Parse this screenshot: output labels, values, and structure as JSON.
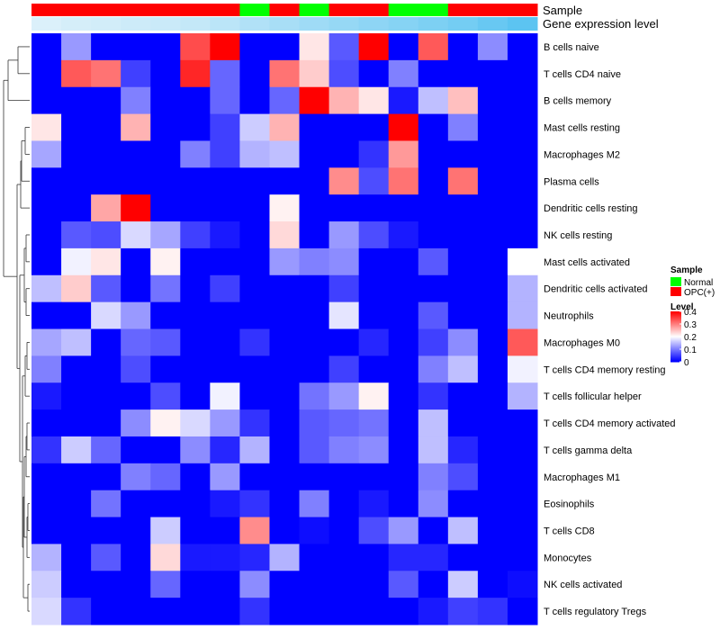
{
  "chart_data": {
    "type": "heatmap",
    "title": "",
    "annotation_labels": [
      "Sample",
      "Gene expression level"
    ],
    "rows": [
      "B cells naive",
      "T cells CD4 naive",
      "B cells memory",
      "Mast cells resting",
      "Macrophages M2",
      "Plasma cells",
      "Dendritic cells resting",
      "NK cells resting",
      "Mast cells activated",
      "Dendritic cells activated",
      "Neutrophils",
      "Macrophages M0",
      "T cells CD4 memory resting",
      "T cells follicular helper",
      "T cells CD4 memory activated",
      "T cells gamma delta",
      "Macrophages M1",
      "Eosinophils",
      "T cells CD8",
      "Monocytes",
      "NK cells activated",
      "T cells regulatory  Tregs"
    ],
    "sample_groups": [
      "OPC(+)",
      "OPC(+)",
      "OPC(+)",
      "OPC(+)",
      "OPC(+)",
      "OPC(+)",
      "OPC(+)",
      "Normal",
      "OPC(+)",
      "Normal",
      "OPC(+)",
      "OPC(+)",
      "Normal",
      "Normal",
      "OPC(+)",
      "OPC(+)",
      "OPC(+)"
    ],
    "expression_level": [
      0.04,
      0.08,
      0.1,
      0.13,
      0.15,
      0.19,
      0.25,
      0.32,
      0.38,
      0.44,
      0.5,
      0.55,
      0.6,
      0.66,
      0.72,
      0.8,
      0.88
    ],
    "values": [
      [
        0,
        0.12,
        0,
        0,
        0,
        0.34,
        0.4,
        0,
        0,
        0.22,
        0.07,
        0.4,
        0,
        0.33,
        0,
        0.11,
        0
      ],
      [
        0,
        0.33,
        0.31,
        0.05,
        0,
        0.37,
        0.08,
        0,
        0.31,
        0.24,
        0.06,
        0,
        0.1,
        0,
        0,
        0,
        0
      ],
      [
        0,
        0,
        0,
        0.1,
        0,
        0,
        0.08,
        0,
        0.08,
        0.4,
        0.26,
        0.22,
        0.02,
        0.15,
        0.25,
        0,
        0
      ],
      [
        0.22,
        0,
        0,
        0.26,
        0,
        0,
        0.05,
        0.16,
        0.26,
        0,
        0,
        0,
        0.4,
        0,
        0.1,
        0,
        0
      ],
      [
        0.13,
        0,
        0,
        0,
        0,
        0.1,
        0.05,
        0.14,
        0.15,
        0,
        0,
        0.04,
        0.28,
        0,
        0,
        0,
        0
      ],
      [
        0,
        0,
        0,
        0,
        0,
        0,
        0,
        0,
        0,
        0,
        0.29,
        0.06,
        0.31,
        0,
        0.31,
        0,
        0
      ],
      [
        0,
        0,
        0.27,
        0.4,
        0,
        0,
        0,
        0,
        0.21,
        0,
        0,
        0,
        0,
        0,
        0,
        0,
        0
      ],
      [
        0,
        0.07,
        0.06,
        0.17,
        0.13,
        0.05,
        0.02,
        0,
        0.23,
        0,
        0.12,
        0.06,
        0.02,
        0,
        0,
        0,
        0
      ],
      [
        0,
        0.19,
        0.22,
        0,
        0.21,
        0,
        0,
        0,
        0.12,
        0.1,
        0.11,
        0,
        0,
        0.07,
        0,
        0,
        0.2
      ],
      [
        0.15,
        0.24,
        0.07,
        0,
        0.09,
        0,
        0.05,
        0,
        0,
        0,
        0.05,
        0,
        0,
        0,
        0,
        0,
        0.14
      ],
      [
        0,
        0,
        0.17,
        0.12,
        0,
        0,
        0,
        0,
        0,
        0,
        0.18,
        0,
        0,
        0.07,
        0,
        0,
        0.14
      ],
      [
        0.13,
        0.15,
        0,
        0.08,
        0.07,
        0,
        0,
        0.04,
        0,
        0,
        0,
        0.03,
        0,
        0.05,
        0.11,
        0,
        0.33
      ],
      [
        0.1,
        0,
        0,
        0.06,
        0,
        0,
        0,
        0,
        0,
        0,
        0.05,
        0,
        0,
        0.1,
        0.15,
        0,
        0.19
      ],
      [
        0.02,
        0,
        0,
        0,
        0.06,
        0,
        0.19,
        0,
        0,
        0.09,
        0.12,
        0.21,
        0,
        0.04,
        0,
        0,
        0.14
      ],
      [
        0,
        0,
        0,
        0.11,
        0.21,
        0.17,
        0.12,
        0.04,
        0,
        0.07,
        0.08,
        0.09,
        0,
        0.15,
        0,
        0,
        0
      ],
      [
        0.04,
        0.16,
        0.08,
        0,
        0,
        0.11,
        0.03,
        0.14,
        0,
        0.07,
        0.1,
        0.11,
        0,
        0.15,
        0.03,
        0,
        0
      ],
      [
        0,
        0,
        0,
        0.1,
        0.08,
        0,
        0.12,
        0,
        0,
        0,
        0,
        0,
        0,
        0.1,
        0.06,
        0,
        0
      ],
      [
        0,
        0,
        0.09,
        0,
        0,
        0,
        0.02,
        0.04,
        0,
        0.1,
        0,
        0.02,
        0,
        0.11,
        0,
        0,
        0
      ],
      [
        0,
        0,
        0,
        0,
        0.16,
        0,
        0,
        0.29,
        0,
        0.01,
        0,
        0.06,
        0.12,
        0,
        0.15,
        0,
        0
      ],
      [
        0.14,
        0,
        0.07,
        0,
        0.23,
        0.02,
        0.02,
        0.03,
        0.14,
        0,
        0,
        0,
        0.03,
        0.03,
        0,
        0,
        0
      ],
      [
        0.16,
        0,
        0,
        0,
        0.08,
        0,
        0,
        0.11,
        0,
        0,
        0,
        0,
        0.07,
        0,
        0.16,
        0,
        0.01
      ],
      [
        0.17,
        0.04,
        0,
        0,
        0,
        0,
        0,
        0.04,
        0,
        0,
        0,
        0,
        0,
        0.02,
        0.05,
        0.04,
        0
      ]
    ],
    "dendrogram": "hierarchical clustering of rows (left)",
    "legend": {
      "sample_title": "Sample",
      "sample_entries": [
        {
          "label": "Normal",
          "color": "#00ff00"
        },
        {
          "label": "OPC(+)",
          "color": "#ff0000"
        }
      ],
      "level_title": "Level",
      "level_ticks": [
        0.4,
        0.3,
        0.2,
        0.1,
        0
      ],
      "level_tick_labels": [
        "0.4",
        "0.3",
        "0.2",
        "0.1",
        "0"
      ],
      "color_scale": {
        "low": "#0000ff",
        "mid": "#ffffff",
        "high": "#ff0000",
        "min": 0,
        "mid_value": 0.2,
        "max": 0.4
      }
    }
  }
}
